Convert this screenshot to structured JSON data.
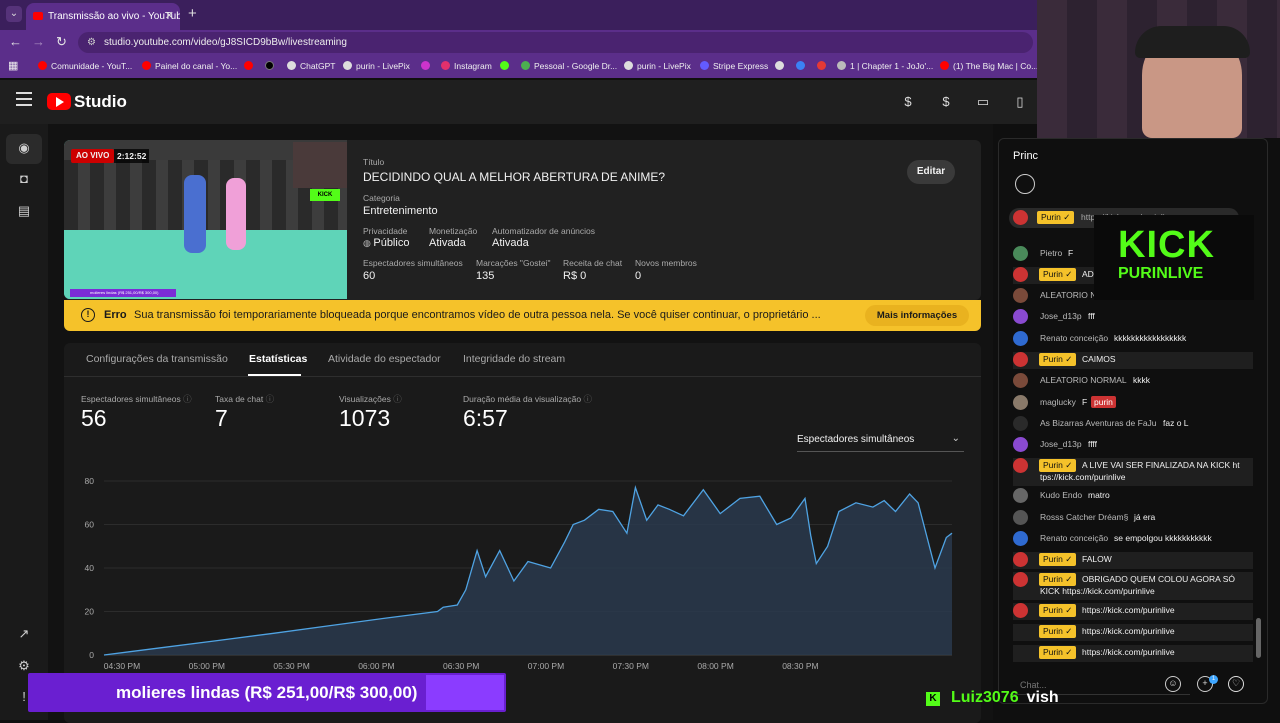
{
  "browser": {
    "tab_title": "Transmissão ao vivo - YouTube",
    "url": "studio.youtube.com/video/gJ8SICD9bBw/livestreaming",
    "bookmarks": [
      {
        "label": "Comunidade - YouT...",
        "color": "#ff0000"
      },
      {
        "label": "Painel do canal - Yo...",
        "color": "#ff0000"
      },
      {
        "label": "",
        "color": "#ff0000"
      },
      {
        "label": "",
        "color": "#000000"
      },
      {
        "label": "ChatGPT",
        "color": "#dddddd"
      },
      {
        "label": "purin - LivePix",
        "color": "#dddddd"
      },
      {
        "label": "",
        "color": "#cc33cc"
      },
      {
        "label": "Instagram",
        "color": "#e1306c"
      },
      {
        "label": "",
        "color": "#53fc18"
      },
      {
        "label": "Pessoal - Google Dr...",
        "color": "#4caf50"
      },
      {
        "label": "purin - LivePix",
        "color": "#dddddd"
      },
      {
        "label": "Stripe Express",
        "color": "#635bff"
      },
      {
        "label": "",
        "color": "#dddddd"
      },
      {
        "label": "",
        "color": "#3b82f6"
      },
      {
        "label": "",
        "color": "#e53935"
      },
      {
        "label": "1 | Chapter 1 - JoJo'...",
        "color": "#bbbbbb"
      },
      {
        "label": "(1) The Big Mac | Co...",
        "color": "#ff0000"
      }
    ]
  },
  "header": {
    "app_name": "Studio"
  },
  "stream": {
    "live_badge": "AO VIVO",
    "duration": "2:12:52",
    "title_label": "Título",
    "title": "DECIDINDO QUAL A MELHOR ABERTURA DE ANIME?",
    "category_label": "Categoria",
    "category": "Entretenimento",
    "privacy_label": "Privacidade",
    "privacy": "Público",
    "monetization_label": "Monetização",
    "monetization": "Ativada",
    "ads_label": "Automatizador de anúncios",
    "ads": "Ativada",
    "concurrent_label": "Espectadores simultâneos",
    "concurrent": "60",
    "likes_label": "Marcações \"Gostei\"",
    "likes": "135",
    "chat_revenue_label": "Receita de chat",
    "chat_revenue": "R$ 0",
    "new_members_label": "Novos membros",
    "new_members": "0",
    "edit_label": "Editar",
    "thumb_kick": "KICK",
    "thumb_bar_text": "molieres lindas (R$ 251,00/R$ 300,00)"
  },
  "alert": {
    "label": "Erro",
    "message": "Sua transmissão foi temporariamente bloqueada porque encontramos vídeo de outra pessoa nela. Se você quiser continuar, o proprietário ...",
    "more_label": "Mais informações"
  },
  "tabs": [
    {
      "label": "Configurações da transmissão"
    },
    {
      "label": "Estatísticas"
    },
    {
      "label": "Atividade do espectador"
    },
    {
      "label": "Integridade do stream"
    }
  ],
  "metrics": [
    {
      "label": "Espectadores simultâneos",
      "value": "56"
    },
    {
      "label": "Taxa de chat",
      "value": "7"
    },
    {
      "label": "Visualizações",
      "value": "1073"
    },
    {
      "label": "Duração média da visualização",
      "value": "6:57"
    }
  ],
  "dropdown": {
    "selected": "Espectadores simultâneos"
  },
  "chart_data": {
    "type": "area",
    "title": "",
    "xlabel": "",
    "ylabel": "",
    "ylim": [
      0,
      80
    ],
    "yticks": [
      0,
      20,
      40,
      60,
      80
    ],
    "xticks": [
      "04:30 PM",
      "05:00 PM",
      "05:30 PM",
      "06:00 PM",
      "06:30 PM",
      "07:00 PM",
      "07:30 PM",
      "08:00 PM",
      "08:30 PM"
    ],
    "series": [
      {
        "x": [
          0,
          20,
          40,
          60,
          80,
          100,
          118,
          120,
          125,
          128,
          132,
          135,
          140,
          145,
          150,
          158,
          163,
          166,
          170,
          175,
          180,
          185,
          188,
          192,
          196,
          200,
          205,
          212,
          218,
          225,
          232,
          238,
          243,
          248,
          250,
          252,
          256,
          260,
          266,
          272,
          276,
          280,
          285,
          288,
          294,
          298,
          300
        ],
        "y": [
          0,
          3.3,
          6.6,
          10,
          13.5,
          17,
          20,
          22,
          23,
          30,
          48,
          36,
          48,
          34,
          43,
          40,
          52,
          60,
          62,
          67,
          66,
          56,
          77,
          62,
          69,
          67,
          64,
          76,
          65,
          72,
          73,
          60,
          63,
          72,
          55,
          42,
          50,
          66,
          70,
          68,
          71,
          66,
          74,
          70,
          40,
          54,
          56
        ]
      }
    ]
  },
  "chat": {
    "title": "Princ",
    "pinned": {
      "badge": "Purin ✓",
      "text": "https://kick.com/purinlive"
    },
    "messages": [
      {
        "author": "Pietro",
        "text": "F",
        "avatar": "#4a8a5a",
        "top": 246,
        "owner_badge": false
      },
      {
        "author": "Purin ✓",
        "text": "AD",
        "avatar": "#cc3333",
        "top": 267,
        "owner_badge": true
      },
      {
        "author": "ALEATORIO N",
        "text": "",
        "avatar": "#7a4a3a",
        "top": 288,
        "owner_badge": false
      },
      {
        "author": "Jose_d13p",
        "text": "fff",
        "avatar": "#8a4ad0",
        "top": 309,
        "owner_badge": false
      },
      {
        "author": "Renato conceição",
        "text": "kkkkkkkkkkkkkkkkk",
        "avatar": "#2f6ad0",
        "top": 331,
        "owner_badge": false
      },
      {
        "author": "Purin ✓",
        "text": "CAIMOS",
        "avatar": "#cc3333",
        "top": 352,
        "owner_badge": true
      },
      {
        "author": "ALEATORIO NORMAL",
        "text": "kkkk",
        "avatar": "#7a4a3a",
        "top": 373,
        "owner_badge": false
      },
      {
        "author": "maglucky",
        "text": "F",
        "avatar": "#8a7a6a",
        "top": 395,
        "owner_badge": false
      },
      {
        "author": "As Bizarras Aventuras de FaJu",
        "text": "faz o L",
        "avatar": "#2a2a2a",
        "top": 416,
        "owner_badge": false
      },
      {
        "author": "Jose_d13p",
        "text": "ffff",
        "avatar": "#8a4ad0",
        "top": 437,
        "owner_badge": false
      },
      {
        "author": "Purin ✓",
        "text": "A LIVE VAI SER FINALIZADA NA KICK ht",
        "text2": "tps://kick.com/purinlive",
        "avatar": "#cc3333",
        "top": 458,
        "owner_badge": true
      },
      {
        "author": "Kudo Endo",
        "text": "matro",
        "avatar": "#666666",
        "top": 488,
        "owner_badge": false
      },
      {
        "author": "Rosss Catcher Dréam§",
        "text": "já era",
        "avatar": "#555555",
        "top": 510,
        "owner_badge": false
      },
      {
        "author": "Renato conceição",
        "text": "se empolgou kkkkkkkkkkk",
        "avatar": "#2f6ad0",
        "top": 531,
        "owner_badge": false
      },
      {
        "author": "Purin ✓",
        "text": "FALOW",
        "avatar": "#cc3333",
        "top": 552,
        "owner_badge": true
      },
      {
        "author": "Purin ✓",
        "text": "OBRIGADO QUEM COLOU AGORA SÓ",
        "text2": "KICK https://kick.com/purinlive",
        "avatar": "#cc3333",
        "top": 572,
        "owner_badge": true
      },
      {
        "author": "Purin ✓",
        "text": "https://kick.com/purinlive",
        "avatar": "#cc3333",
        "top": 603,
        "owner_badge": true
      },
      {
        "author": "Purin ✓",
        "text": "https://kick.com/purinlive",
        "avatar": "",
        "top": 624,
        "owner_badge": true
      },
      {
        "author": "Purin ✓",
        "text": "https://kick.com/purinlive",
        "avatar": "",
        "top": 645,
        "owner_badge": true
      }
    ],
    "owner_tag": "purin",
    "input_placeholder": "Chat...",
    "notif_count": "1"
  },
  "overlay": {
    "kick_logo_line1": "KICK",
    "kick_logo_line2": "PURINLIVE",
    "donation_text": "molieres lindas (R$ 251,00/R$ 300,00)",
    "kick_user": "Luiz3076",
    "kick_message": "vish"
  }
}
